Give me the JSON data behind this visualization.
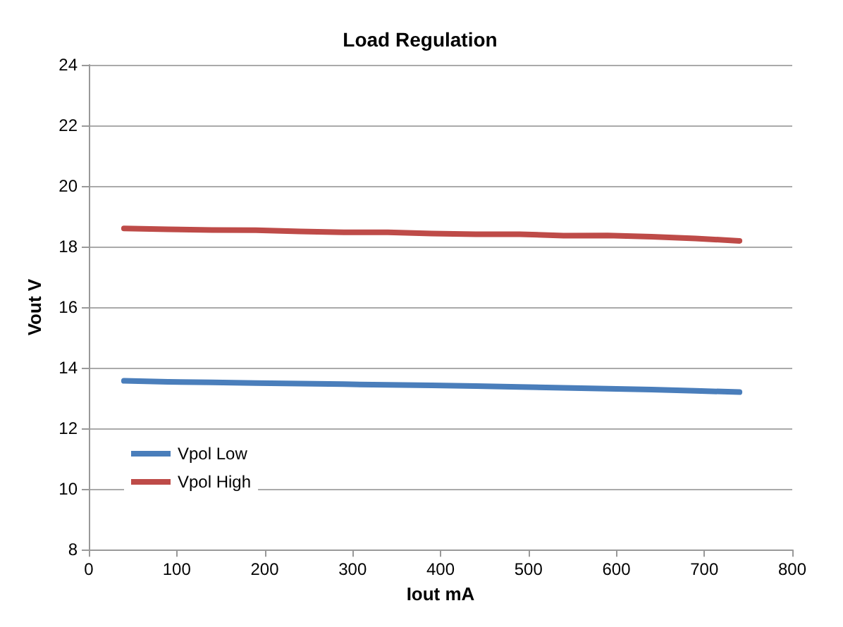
{
  "chart_data": {
    "type": "line",
    "title": "Load Regulation",
    "xlabel": "Iout mA",
    "ylabel": "Vout V",
    "x": [
      40,
      90,
      140,
      190,
      240,
      290,
      340,
      390,
      440,
      490,
      540,
      590,
      640,
      690,
      740
    ],
    "series": [
      {
        "name": "Vpol Low",
        "color": "#4a7ebb",
        "values": [
          13.57,
          13.54,
          13.52,
          13.5,
          13.48,
          13.46,
          13.44,
          13.42,
          13.4,
          13.37,
          13.34,
          13.31,
          13.28,
          13.24,
          13.2
        ]
      },
      {
        "name": "Vpol High",
        "color": "#be4b48",
        "values": [
          18.6,
          18.57,
          18.55,
          18.54,
          18.5,
          18.47,
          18.47,
          18.43,
          18.41,
          18.41,
          18.36,
          18.37,
          18.33,
          18.27,
          18.19
        ]
      }
    ],
    "xlim": [
      0,
      800
    ],
    "xticks": [
      0,
      100,
      200,
      300,
      400,
      500,
      600,
      700,
      800
    ],
    "ylim": [
      8,
      24
    ],
    "yticks": [
      8,
      10,
      12,
      14,
      16,
      18,
      20,
      22,
      24
    ],
    "grid": "y",
    "legend": "bottom left",
    "marker": "none",
    "line_style": "solid"
  }
}
